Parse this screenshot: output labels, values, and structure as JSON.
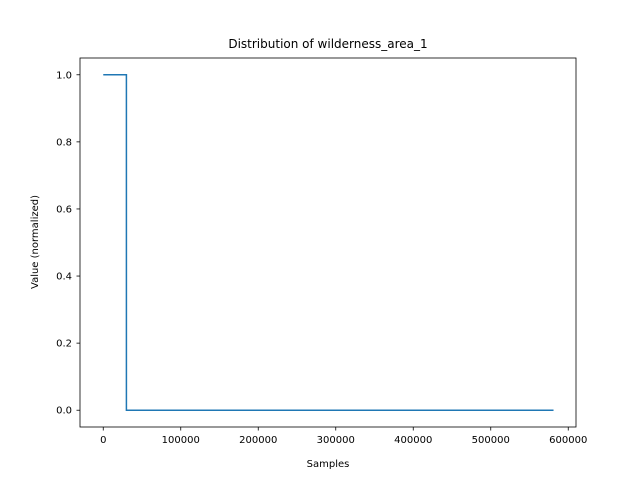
{
  "chart_data": {
    "type": "line",
    "title": "Distribution of wilderness_area_1",
    "xlabel": "Samples",
    "ylabel": "Value (normalized)",
    "xlim": [
      -30000,
      610000
    ],
    "ylim": [
      -0.05,
      1.05
    ],
    "xticks": [
      0,
      100000,
      200000,
      300000,
      400000,
      500000,
      600000
    ],
    "yticks": [
      0.0,
      0.2,
      0.4,
      0.6,
      0.8,
      1.0
    ],
    "xtick_labels": [
      "0",
      "100000",
      "200000",
      "300000",
      "400000",
      "500000",
      "600000"
    ],
    "ytick_labels": [
      "0.0",
      "0.2",
      "0.4",
      "0.6",
      "0.8",
      "1.0"
    ],
    "grid": false,
    "series": [
      {
        "color": "#1f77b4",
        "x": [
          0,
          29884,
          29884,
          581011
        ],
        "y": [
          1.0,
          1.0,
          0.0,
          0.0
        ]
      }
    ]
  }
}
